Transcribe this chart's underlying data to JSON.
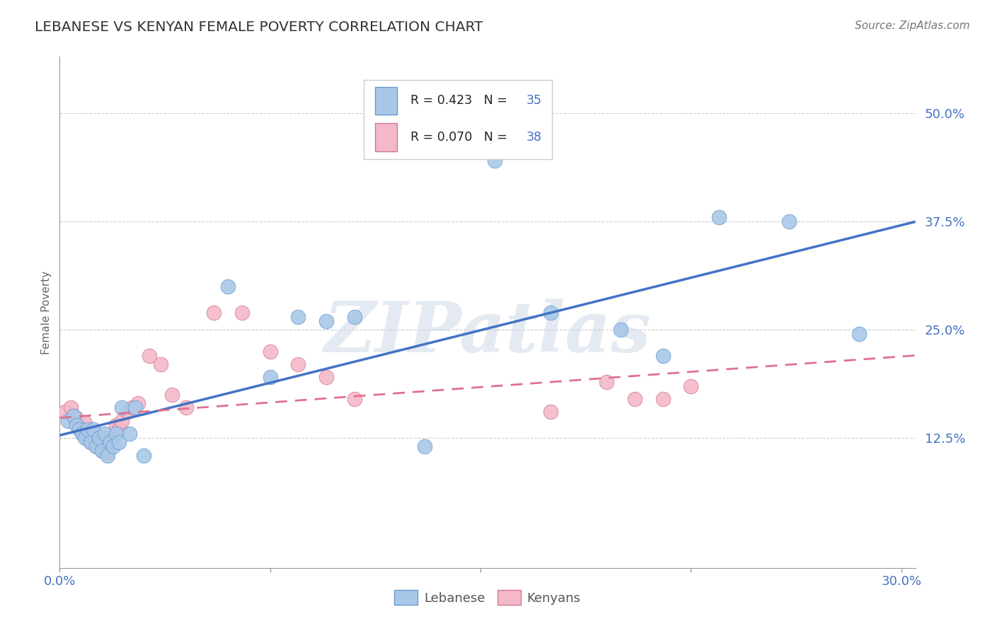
{
  "title": "LEBANESE VS KENYAN FEMALE POVERTY CORRELATION CHART",
  "source": "Source: ZipAtlas.com",
  "ylabel": "Female Poverty",
  "xlim": [
    0.0,
    0.305
  ],
  "ylim": [
    -0.025,
    0.565
  ],
  "ytick_vals": [
    0.125,
    0.25,
    0.375,
    0.5
  ],
  "ytick_labels": [
    "12.5%",
    "25.0%",
    "37.5%",
    "50.0%"
  ],
  "xtick_vals": [
    0.0,
    0.3
  ],
  "xtick_labels": [
    "0.0%",
    "30.0%"
  ],
  "legend_r1_black": "R = ",
  "legend_r1_blue": "0.423",
  "legend_n1_black": "  N = ",
  "legend_n1_blue": "35",
  "legend_r2_black": "R = ",
  "legend_r2_blue": "0.070",
  "legend_n2_black": "  N = ",
  "legend_n2_blue": "38",
  "blue_fill": "#a8c8e8",
  "blue_edge": "#6699cc",
  "pink_fill": "#f4b8c8",
  "pink_edge": "#d07890",
  "line_blue": "#4472c4",
  "line_pink": "#e07090",
  "watermark": "ZIPatlas",
  "lebanese_x": [
    0.003,
    0.005,
    0.006,
    0.007,
    0.008,
    0.009,
    0.01,
    0.011,
    0.012,
    0.013,
    0.014,
    0.015,
    0.016,
    0.017,
    0.018,
    0.019,
    0.02,
    0.021,
    0.022,
    0.025,
    0.027,
    0.03,
    0.06,
    0.075,
    0.085,
    0.095,
    0.105,
    0.13,
    0.155,
    0.175,
    0.2,
    0.215,
    0.235,
    0.26,
    0.285
  ],
  "lebanese_y": [
    0.145,
    0.15,
    0.14,
    0.135,
    0.13,
    0.125,
    0.135,
    0.12,
    0.135,
    0.115,
    0.125,
    0.11,
    0.13,
    0.105,
    0.12,
    0.115,
    0.13,
    0.12,
    0.16,
    0.13,
    0.16,
    0.105,
    0.3,
    0.195,
    0.265,
    0.26,
    0.265,
    0.115,
    0.445,
    0.27,
    0.25,
    0.22,
    0.38,
    0.375,
    0.245
  ],
  "kenyan_x": [
    0.002,
    0.004,
    0.005,
    0.006,
    0.007,
    0.008,
    0.009,
    0.01,
    0.011,
    0.012,
    0.013,
    0.014,
    0.015,
    0.016,
    0.017,
    0.018,
    0.019,
    0.02,
    0.021,
    0.022,
    0.024,
    0.026,
    0.028,
    0.032,
    0.036,
    0.04,
    0.045,
    0.055,
    0.065,
    0.075,
    0.085,
    0.095,
    0.105,
    0.175,
    0.195,
    0.205,
    0.215,
    0.225
  ],
  "kenyan_y": [
    0.155,
    0.16,
    0.15,
    0.148,
    0.138,
    0.132,
    0.142,
    0.125,
    0.12,
    0.13,
    0.115,
    0.125,
    0.11,
    0.125,
    0.108,
    0.118,
    0.125,
    0.14,
    0.135,
    0.145,
    0.155,
    0.16,
    0.165,
    0.22,
    0.21,
    0.175,
    0.16,
    0.27,
    0.27,
    0.225,
    0.21,
    0.195,
    0.17,
    0.155,
    0.19,
    0.17,
    0.17,
    0.185
  ]
}
